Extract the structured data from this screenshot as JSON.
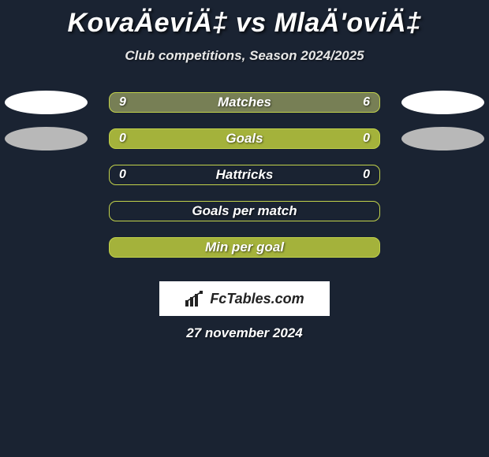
{
  "background_color": "#1a2332",
  "title": "KovaÄeviÄ‡ vs MlaÄ'oviÄ‡",
  "subtitle": "Club competitions, Season 2024/2025",
  "date": "27 november 2024",
  "logo_text": "FcTables.com",
  "ellipse_colors": {
    "white": "#ffffff",
    "grey": "#b8b8b8"
  },
  "rows": [
    {
      "label": "Matches",
      "left": "9",
      "right": "6",
      "fill": "#777f55",
      "border": "#c2d24b",
      "left_ellipse": "white",
      "right_ellipse": "white"
    },
    {
      "label": "Goals",
      "left": "0",
      "right": "0",
      "fill": "#a4b23b",
      "border": "#c2d24b",
      "left_ellipse": "grey",
      "right_ellipse": "grey"
    },
    {
      "label": "Hattricks",
      "left": "0",
      "right": "0",
      "fill": "none",
      "border": "#c2d24b"
    },
    {
      "label": "Goals per match",
      "left": "",
      "right": "",
      "fill": "none",
      "border": "#c2d24b"
    },
    {
      "label": "Min per goal",
      "left": "",
      "right": "",
      "fill": "#a4b23b",
      "border": "#c2d24b"
    }
  ]
}
